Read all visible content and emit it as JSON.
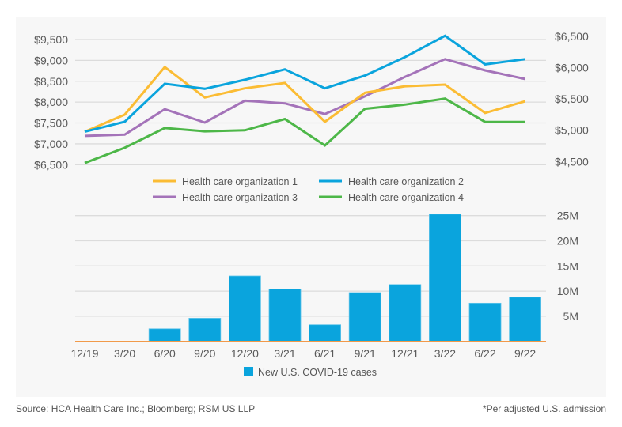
{
  "chart_data": [
    {
      "type": "line",
      "title": "",
      "categories": [
        "12/19",
        "3/20",
        "6/20",
        "9/20",
        "12/20",
        "3/21",
        "6/21",
        "9/21",
        "12/21",
        "3/22",
        "6/22",
        "9/22"
      ],
      "left_axis": {
        "ticks": [
          6500,
          7000,
          7500,
          8000,
          8500,
          9000,
          9500
        ],
        "tick_labels": [
          "$6,500",
          "$7,000",
          "$7,500",
          "$8,000",
          "$8,500",
          "$9,000",
          "$9,500"
        ],
        "ylim": [
          6500,
          9500
        ]
      },
      "right_axis": {
        "ticks": [
          4500,
          5000,
          5500,
          6000,
          6500
        ],
        "tick_labels": [
          "$4,500",
          "$5,000",
          "$5,500",
          "$6,000",
          "$6,500"
        ],
        "ylim": [
          4500,
          6500
        ]
      },
      "grid": true,
      "legend_position": "bottom-center",
      "series": [
        {
          "name": "Health care organization 1",
          "color": "#fbbc34",
          "values": [
            7290,
            7700,
            8840,
            8110,
            8330,
            8460,
            7530,
            8225,
            8380,
            8420,
            7740,
            8020
          ]
        },
        {
          "name": "Health care organization 2",
          "color": "#0aa4dd",
          "values": [
            7290,
            7530,
            8440,
            8320,
            8535,
            8785,
            8330,
            8635,
            9080,
            9590,
            8905,
            9030
          ]
        },
        {
          "name": "Health care organization 3",
          "color": "#a473b9",
          "values": [
            7190,
            7220,
            7830,
            7510,
            8035,
            7970,
            7715,
            8140,
            8605,
            9030,
            8760,
            8555
          ]
        },
        {
          "name": "Health care organization 4",
          "color": "#4db748",
          "values": [
            6540,
            6905,
            7380,
            7300,
            7325,
            7595,
            6960,
            7840,
            7940,
            8085,
            7525,
            7525
          ]
        }
      ]
    },
    {
      "type": "bar",
      "title": "",
      "categories": [
        "12/19",
        "3/20",
        "6/20",
        "9/20",
        "12/20",
        "3/21",
        "6/21",
        "9/21",
        "12/21",
        "3/22",
        "6/22",
        "9/22"
      ],
      "series": [
        {
          "name": "New U.S. COVID-19 cases",
          "color": "#0aa4dd",
          "values": [
            0,
            0,
            2.5,
            4.6,
            13.0,
            10.4,
            3.3,
            9.7,
            11.3,
            25.3,
            7.6,
            8.8
          ],
          "unit": "M"
        }
      ],
      "right_axis": {
        "ticks": [
          5,
          10,
          15,
          20,
          25
        ],
        "tick_labels": [
          "5M",
          "10M",
          "15M",
          "20M",
          "25M"
        ],
        "ylim": [
          0,
          25
        ]
      },
      "xlabel": "",
      "grid": true,
      "baseline_color": "#f19a4a",
      "legend_position": "bottom-center"
    }
  ],
  "footer": {
    "source": "Source: HCA Health Care Inc.; Bloomberg; RSM US LLP",
    "note": "*Per adjusted U.S. admission"
  }
}
